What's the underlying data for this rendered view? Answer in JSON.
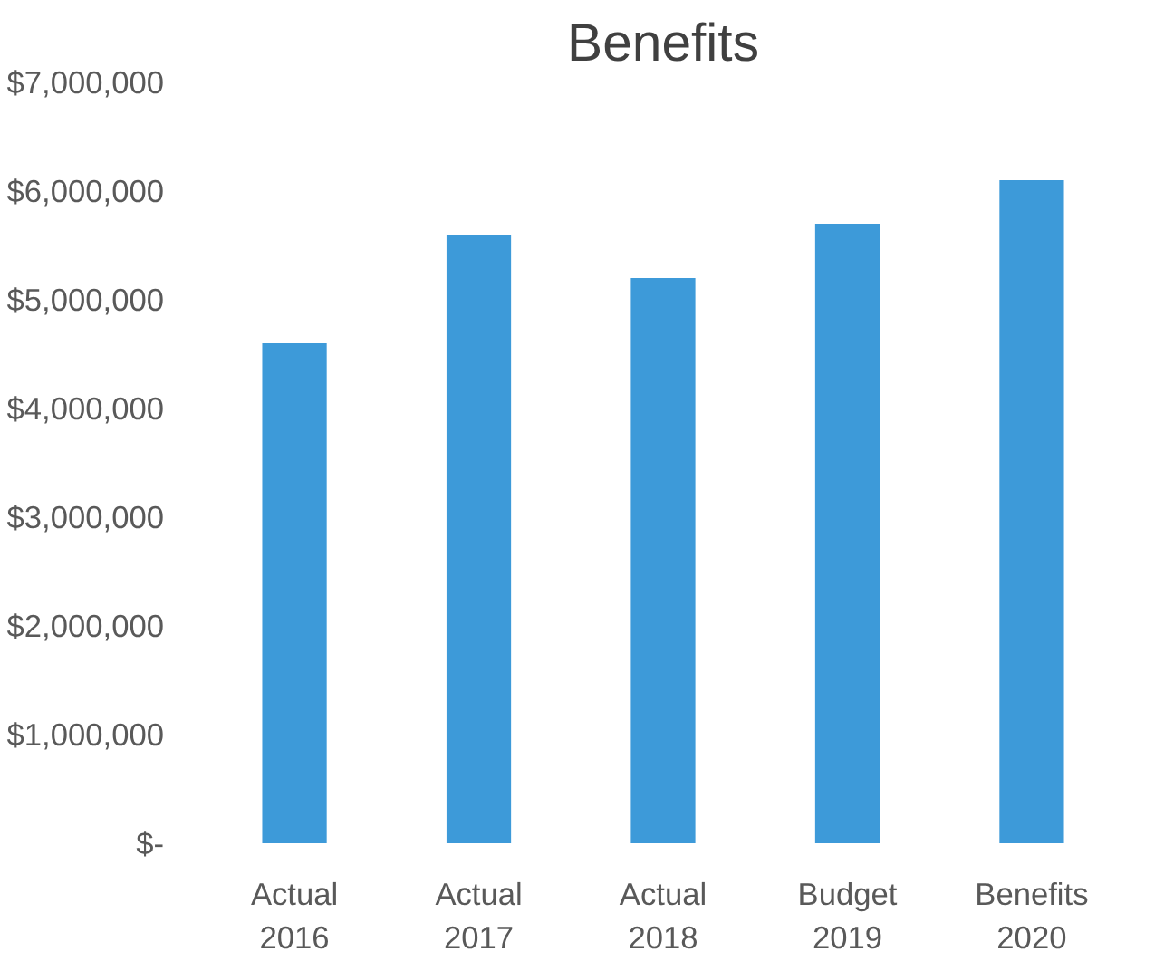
{
  "chart_data": {
    "type": "bar",
    "title": "Benefits",
    "categories": [
      "Actual\n2016",
      "Actual\n2017",
      "Actual\n2018",
      "Budget\n2019",
      "Benefits\n2020"
    ],
    "values": [
      4600000,
      5600000,
      5200000,
      5700000,
      6100000
    ],
    "color": "#3d9ad9",
    "ylim": [
      0,
      7000000
    ],
    "yticks": [
      {
        "value": 0,
        "label": "$-"
      },
      {
        "value": 1000000,
        "label": "$1,000,000"
      },
      {
        "value": 2000000,
        "label": "$2,000,000"
      },
      {
        "value": 3000000,
        "label": "$3,000,000"
      },
      {
        "value": 4000000,
        "label": "$4,000,000"
      },
      {
        "value": 5000000,
        "label": "$5,000,000"
      },
      {
        "value": 6000000,
        "label": "$6,000,000"
      },
      {
        "value": 7000000,
        "label": "$7,000,000"
      }
    ],
    "grid": false
  }
}
